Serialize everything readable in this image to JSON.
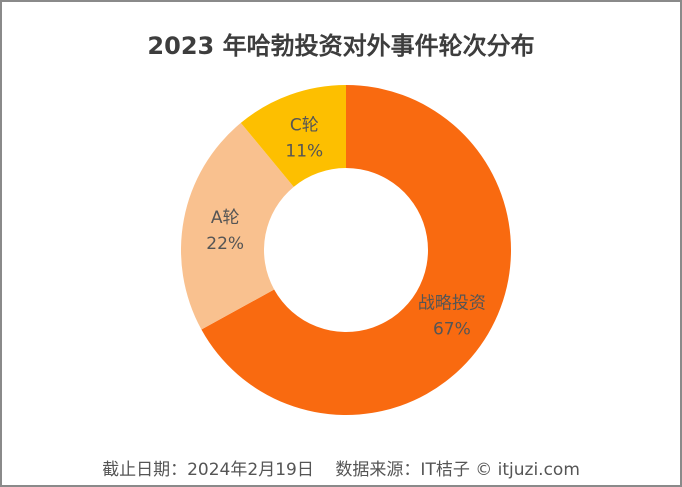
{
  "chart_data": {
    "type": "pie",
    "donut": true,
    "title": "2023 年哈勃投资对外事件轮次分布",
    "slices": [
      {
        "label": "战略投资",
        "value": 67,
        "value_label": "67%",
        "color": "#F96A10"
      },
      {
        "label": "A轮",
        "value": 22,
        "value_label": "22%",
        "color": "#F9C18F"
      },
      {
        "label": "C轮",
        "value": 11,
        "value_label": "11%",
        "color": "#FDBF00"
      }
    ],
    "start": "top",
    "direction": "clockwise",
    "legend": "none"
  },
  "footer": "截止日期：2024年2月19日    数据来源：IT桔子 © itjuzi.com"
}
